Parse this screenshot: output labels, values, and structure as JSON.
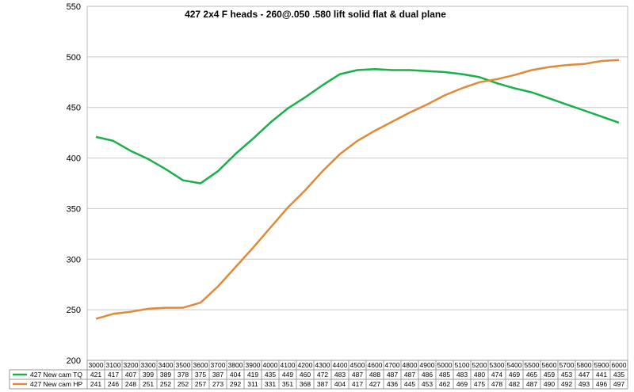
{
  "chart_data": {
    "type": "line",
    "title": "427 2x4 F heads - 260@.050 .580 lift solid flat & dual plane",
    "xlabel": "",
    "ylabel": "",
    "ylim": [
      200,
      550
    ],
    "yticks": [
      200,
      250,
      300,
      350,
      400,
      450,
      500,
      550
    ],
    "grid": "horizontal",
    "legend": "data-table",
    "x": [
      3000,
      3100,
      3200,
      3300,
      3400,
      3500,
      3600,
      3700,
      3800,
      3900,
      4000,
      4100,
      4200,
      4300,
      4400,
      4500,
      4600,
      4700,
      4800,
      4900,
      5000,
      5100,
      5200,
      5300,
      5400,
      5500,
      5600,
      5700,
      5800,
      5900,
      6000
    ],
    "series": [
      {
        "name": "427 New cam TQ",
        "color": "#1ab04a",
        "values": [
          421,
          417,
          407,
          399,
          389,
          378,
          375,
          387,
          404,
          419,
          435,
          449,
          460,
          472,
          483,
          487,
          488,
          487,
          487,
          486,
          485,
          483,
          480,
          474,
          469,
          465,
          459,
          453,
          447,
          441,
          435
        ]
      },
      {
        "name": "427 New cam HP",
        "color": "#e08a38",
        "values": [
          241,
          246,
          248,
          251,
          252,
          252,
          257,
          273,
          292,
          311,
          331,
          351,
          368,
          387,
          404,
          417,
          427,
          436,
          445,
          453,
          462,
          469,
          475,
          478,
          482,
          487,
          490,
          492,
          493,
          496,
          497
        ]
      }
    ]
  }
}
